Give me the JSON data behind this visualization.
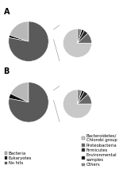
{
  "A_left": {
    "values": [
      20,
      2,
      78
    ],
    "colors": [
      "#b8b8b8",
      "#111111",
      "#5a5a5a"
    ],
    "startangle": 90
  },
  "A_right": {
    "values": [
      75,
      12,
      5,
      3,
      5
    ],
    "colors": [
      "#c8c8c8",
      "#686868",
      "#2a2a2a",
      "#111111",
      "#888888"
    ],
    "startangle": 90
  },
  "B_left": {
    "values": [
      18,
      4,
      78
    ],
    "colors": [
      "#b8b8b8",
      "#111111",
      "#5a5a5a"
    ],
    "startangle": 90
  },
  "B_right": {
    "values": [
      75,
      12,
      5,
      3,
      5
    ],
    "colors": [
      "#c8c8c8",
      "#686868",
      "#2a2a2a",
      "#111111",
      "#888888"
    ],
    "startangle": 90
  },
  "legend_left_labels": [
    "Bacteria",
    "Eukaryotes",
    "No hits"
  ],
  "legend_left_colors": [
    "#b8b8b8",
    "#111111",
    "#5a5a5a"
  ],
  "legend_right_labels": [
    "Bacteroidetes/\nChlorobi group",
    "Proteobacteria",
    "Firmicutes",
    "Environmental\nsamples",
    "Others"
  ],
  "legend_right_colors": [
    "#c8c8c8",
    "#686868",
    "#2a2a2a",
    "#111111",
    "#888888"
  ],
  "label_A": "A",
  "label_B": "B",
  "background": "#ffffff",
  "connector_color": "#888888",
  "connector_lw": 0.4
}
